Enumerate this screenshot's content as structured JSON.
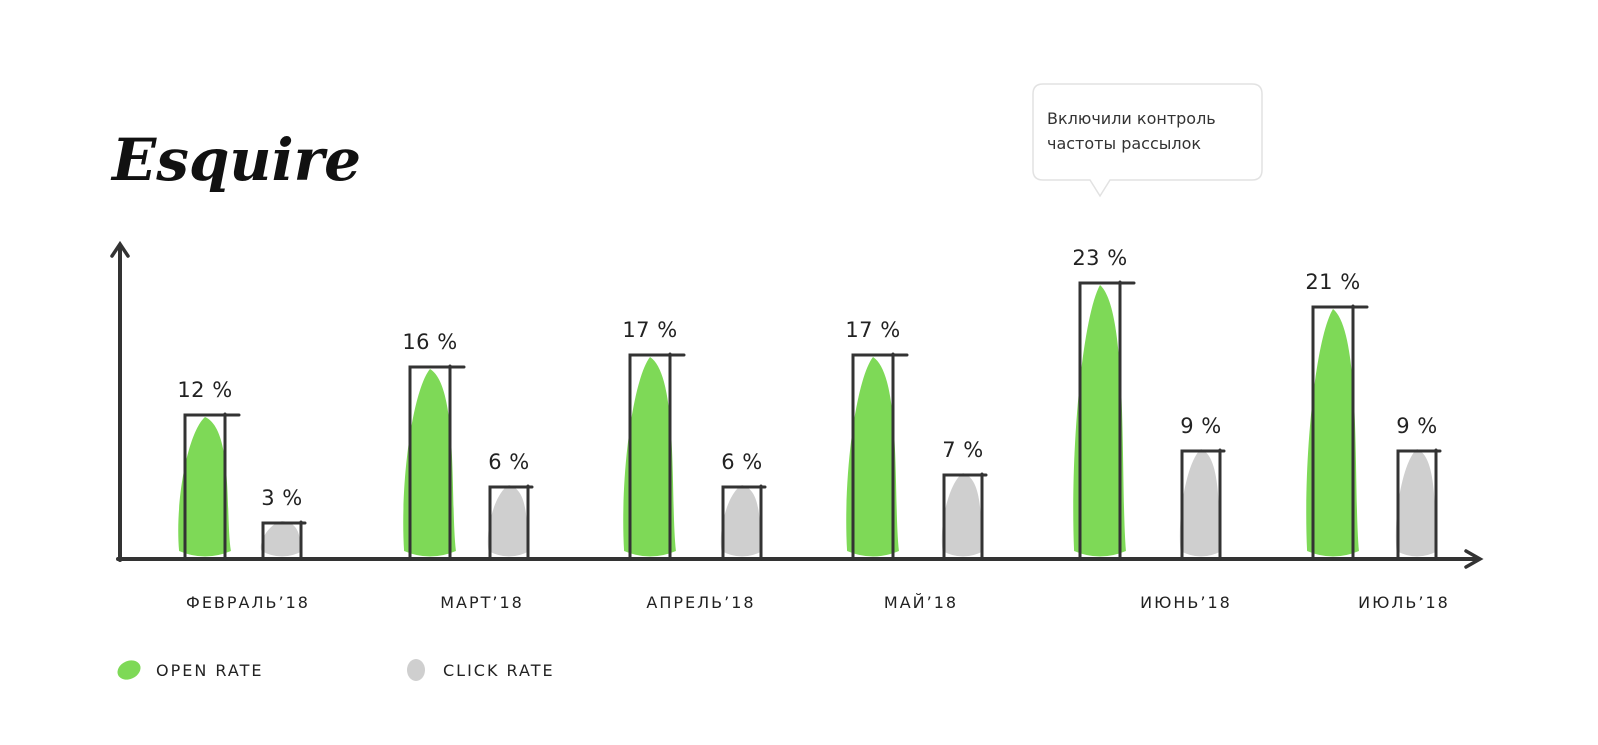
{
  "brand": {
    "logo_text": "Esquire"
  },
  "annotation": {
    "lines": [
      "Включили контроль",
      "частоты рассылок"
    ]
  },
  "colors": {
    "open_rate": "#7ED957",
    "click_rate": "#CFCFCF",
    "axis": "#333333",
    "text": "#222222"
  },
  "legend": {
    "items": [
      {
        "label": "OPEN RATE",
        "color": "#7ED957"
      },
      {
        "label": "CLICK RATE",
        "color": "#CFCFCF"
      }
    ],
    "placement": "bottom-left"
  },
  "chart_data": {
    "type": "bar",
    "categories": [
      "ФЕВРАЛЬ’18",
      "МАРТ’18",
      "АПРЕЛЬ’18",
      "МАЙ’18",
      "ИЮНЬ’18",
      "ИЮЛЬ’18"
    ],
    "series": [
      {
        "name": "OPEN RATE",
        "values": [
          12,
          16,
          17,
          17,
          23,
          21
        ],
        "labels": [
          "12 %",
          "16 %",
          "17 %",
          "17 %",
          "23 %",
          "21 %"
        ]
      },
      {
        "name": "CLICK RATE",
        "values": [
          3,
          6,
          6,
          7,
          9,
          9
        ],
        "labels": [
          "3 %",
          "6 %",
          "6 %",
          "7 %",
          "9 %",
          "9 %"
        ]
      }
    ],
    "title": "",
    "xlabel": "",
    "ylabel": "",
    "ylim": [
      0,
      25
    ],
    "grid": false,
    "legend_placement": "bottom-left",
    "annotation_category": "ИЮНЬ’18"
  }
}
